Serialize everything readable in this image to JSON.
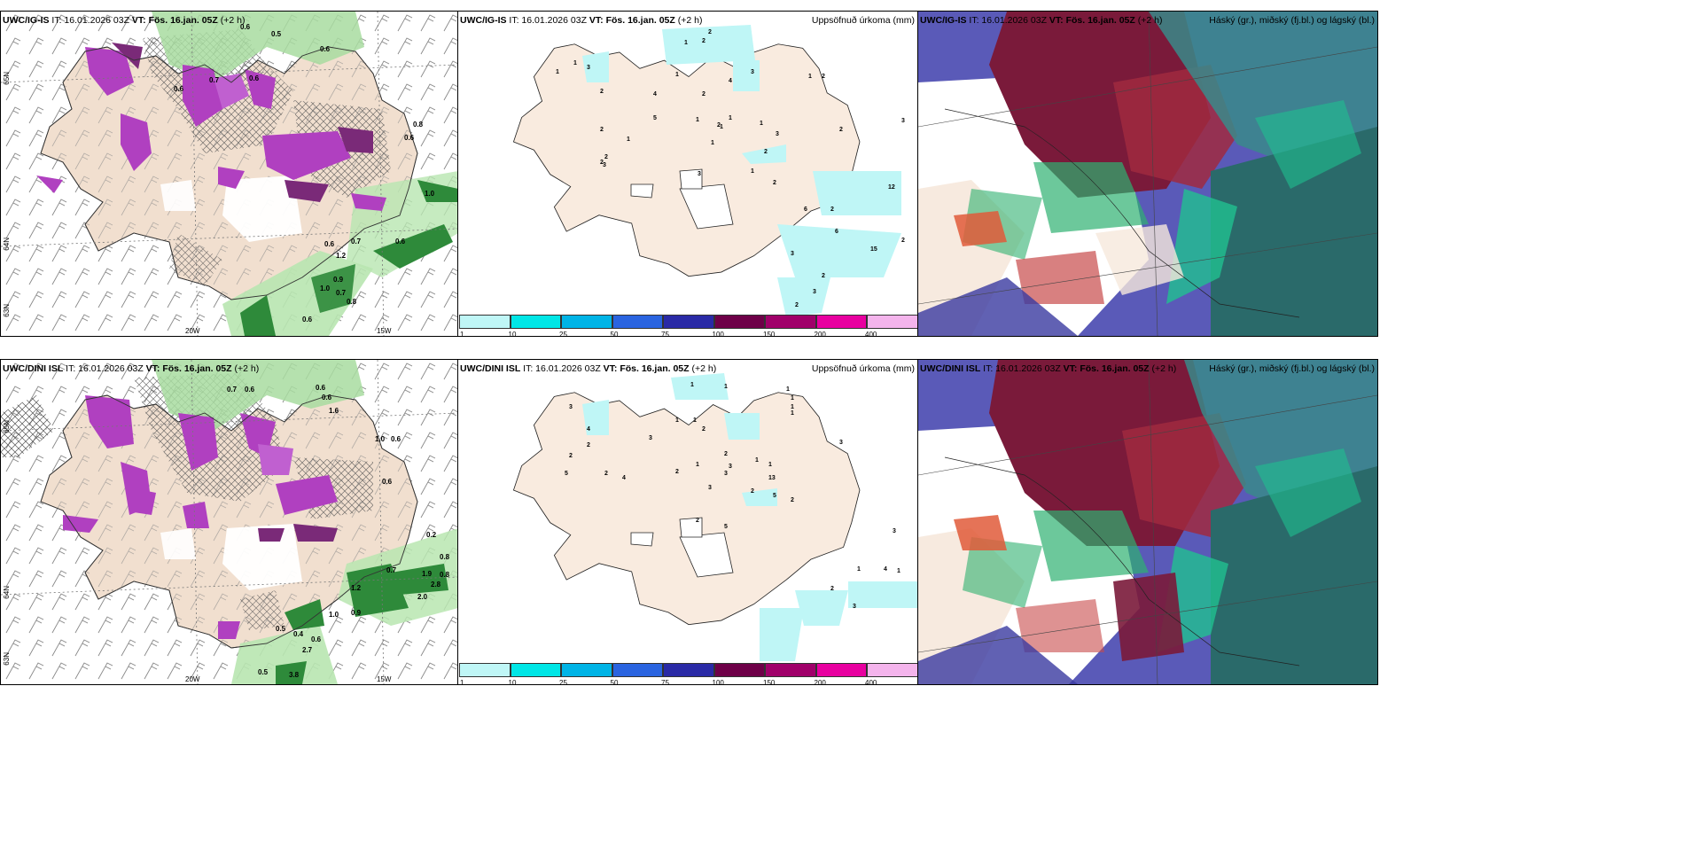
{
  "panels": {
    "tl": {
      "model": "UWC/IG-IS",
      "it": "IT: 16.01.2026 03Z",
      "vt": "VT: Fös. 16.jan. 05Z",
      "lead": "(+2 h)",
      "right": ""
    },
    "tm": {
      "model": "UWC/IG-IS",
      "it": "IT: 16.01.2026 03Z",
      "vt": "VT: Fös. 16.jan. 05Z",
      "lead": "(+2 h)",
      "right": "Uppsöfnuð úrkoma (mm)"
    },
    "tr": {
      "model": "UWC/IG-IS",
      "it": "IT: 16.01.2026 03Z",
      "vt": "VT: Fös. 16.jan. 05Z",
      "lead": "(+2 h)",
      "right": "Háský (gr.), miðský (fj.bl.) og lágský (bl.)"
    },
    "bl": {
      "model": "UWC/DINI ISL",
      "it": "IT: 16.01.2026 03Z",
      "vt": "VT: Fös. 16.jan. 05Z",
      "lead": "(+2 h)",
      "right": ""
    },
    "bm": {
      "model": "UWC/DINI ISL",
      "it": "IT: 16.01.2026 03Z",
      "vt": "VT: Fös. 16.jan. 05Z",
      "lead": "(+2 h)",
      "right": "Uppsöfnuð úrkoma (mm)"
    },
    "br": {
      "model": "UWC/DINI ISL",
      "it": "IT: 16.01.2026 03Z",
      "vt": "VT: Fös. 16.jan. 05Z",
      "lead": "(+2 h)",
      "right": "Háský (gr.), miðský (fj.bl.) og lágský (bl.)"
    }
  },
  "axis_labels": {
    "lat65": "65N",
    "lat64": "64N",
    "lat63": "63N",
    "lon20": "20W",
    "lon15": "15W"
  },
  "colorbar": {
    "labels": [
      "1",
      "10",
      "25",
      "50",
      "75",
      "100",
      "150",
      "200",
      "400"
    ],
    "colors": [
      "#bff6f6",
      "#00e6e6",
      "#00b4e6",
      "#2a64e0",
      "#2a2aa6",
      "#6e0048",
      "#a0006a",
      "#e800a0",
      "#f4b4ec"
    ]
  },
  "colors": {
    "land": "#f6e8dc",
    "wind": "#7a7a7a",
    "snow": "#b040c0",
    "snow_dark": "#7a2a78",
    "rain": "#2e8a3a",
    "rain_light": "#a8dca0",
    "ocean": "#5a5ab8",
    "cloud_high": "#7a1a3a",
    "cloud_mid": "#2a6a6a",
    "cloud_low": "#20c090"
  },
  "precip_top": [
    "1",
    "2",
    "2",
    "1",
    "1",
    "3",
    "2",
    "4",
    "1",
    "5",
    "4",
    "3",
    "2",
    "2",
    "1",
    "1",
    "1",
    "1",
    "2",
    "2",
    "1",
    "2",
    "3",
    "2",
    "1",
    "3",
    "2",
    "1",
    "2",
    "3",
    "1",
    "2",
    "3",
    "12",
    "2",
    "6",
    "6",
    "15",
    "3",
    "2",
    "3",
    "2",
    "2"
  ],
  "precip_bottom": [
    "1",
    "1",
    "1",
    "1",
    "1",
    "1",
    "4",
    "3",
    "2",
    "2",
    "2",
    "4",
    "5",
    "3",
    "1",
    "1",
    "2",
    "2",
    "1",
    "3",
    "2",
    "3",
    "3",
    "1",
    "1",
    "2",
    "5",
    "13",
    "2",
    "2",
    "5",
    "3",
    "3",
    "1",
    "4",
    "1",
    "2",
    "3"
  ]
}
